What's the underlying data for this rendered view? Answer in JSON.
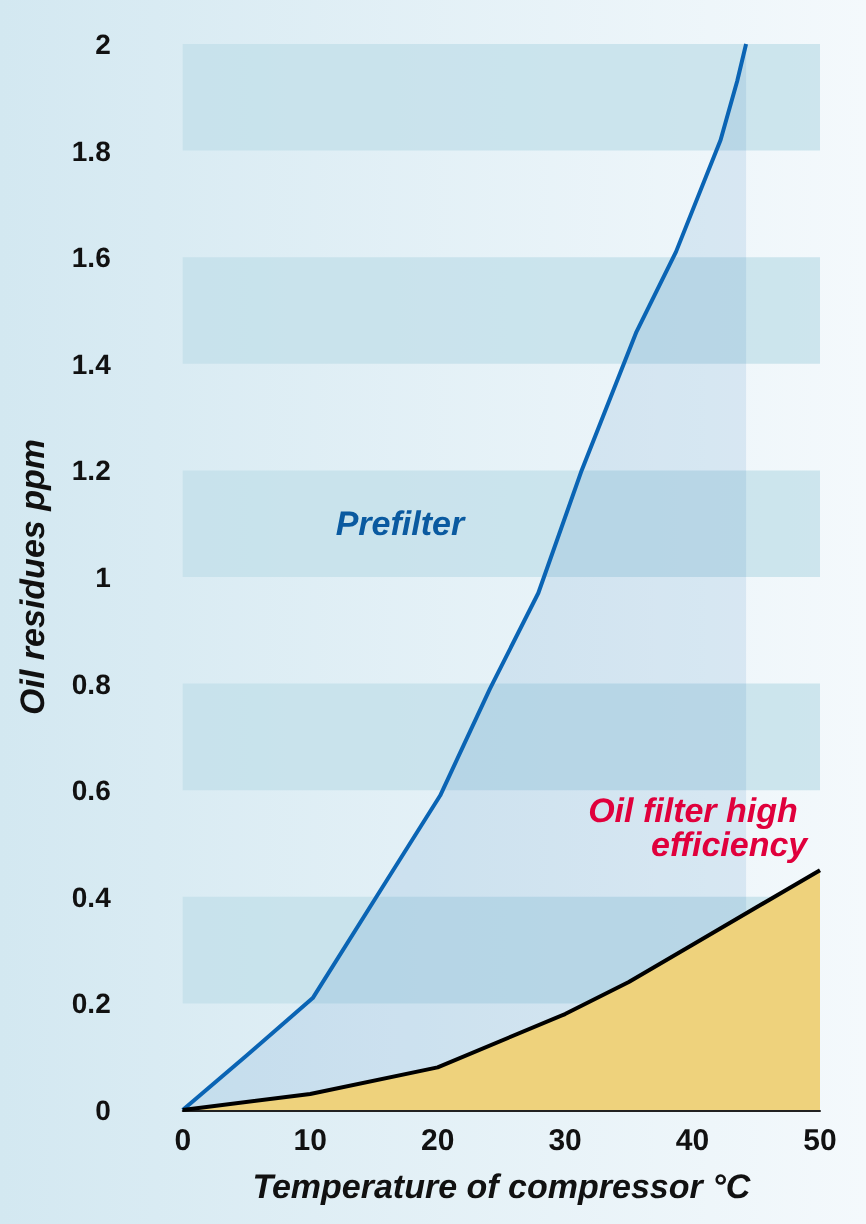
{
  "chart_data": {
    "type": "area",
    "xlabel": "Temperature of compressor °C",
    "ylabel": "Oil residues ppm",
    "xlim": [
      0,
      50
    ],
    "ylim": [
      0,
      2
    ],
    "xticks": [
      0,
      10,
      20,
      30,
      40,
      50
    ],
    "yticks": [
      0,
      0.2,
      0.4,
      0.6,
      0.8,
      1,
      1.2,
      1.4,
      1.6,
      1.8,
      2
    ],
    "marker": "none",
    "bands": [
      {
        "axis": "y",
        "from": 0.2,
        "to": 0.4,
        "color": "#c3e0ea"
      },
      {
        "axis": "y",
        "from": 0.6,
        "to": 0.8,
        "color": "#c3e0ea"
      },
      {
        "axis": "y",
        "from": 1.0,
        "to": 1.2,
        "color": "#c3e0ea"
      },
      {
        "axis": "y",
        "from": 1.4,
        "to": 1.6,
        "color": "#c3e0ea"
      },
      {
        "axis": "y",
        "from": 1.8,
        "to": 2.0,
        "color": "#c3e0ea"
      }
    ],
    "series": [
      {
        "name": "Prefilter",
        "color": "#0a64b4",
        "x": [
          0,
          4.9,
          10.2,
          15.2,
          20.2,
          24.1,
          27.9,
          31.3,
          35.6,
          38.7,
          42.2,
          43.5,
          44.2
        ],
        "values": [
          0,
          0.1,
          0.21,
          0.4,
          0.59,
          0.79,
          0.97,
          1.2,
          1.46,
          1.61,
          1.82,
          1.93,
          2
        ]
      },
      {
        "name": "Oil filter high efficiency",
        "color": "#000000",
        "x": [
          0,
          10,
          20,
          30,
          35,
          40,
          50
        ],
        "values": [
          0,
          0.03,
          0.08,
          0.18,
          0.24,
          0.31,
          0.45
        ]
      }
    ]
  }
}
